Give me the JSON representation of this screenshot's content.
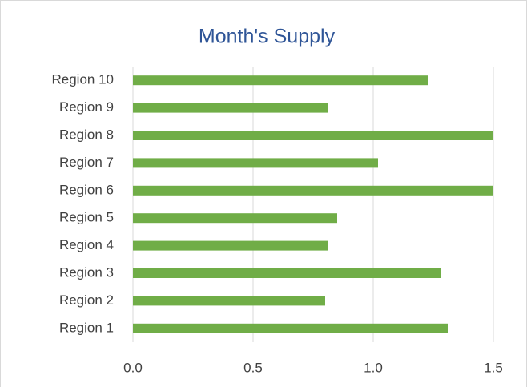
{
  "chart_data": {
    "type": "bar",
    "orientation": "horizontal",
    "title": "Month's Supply",
    "categories": [
      "Region 1",
      "Region 2",
      "Region 3",
      "Region 4",
      "Region 5",
      "Region 6",
      "Region 7",
      "Region 8",
      "Region 9",
      "Region 10"
    ],
    "values": [
      1.31,
      0.8,
      1.28,
      0.81,
      0.85,
      1.5,
      1.02,
      1.5,
      0.81,
      1.23
    ],
    "color": "#70ad47",
    "xlim": [
      0,
      1.5
    ],
    "xticks": [
      {
        "value": 0,
        "label": "0.0"
      },
      {
        "value": 0.5,
        "label": "0.5"
      },
      {
        "value": 1,
        "label": "1.0"
      },
      {
        "value": 1.5,
        "label": "1.5"
      }
    ],
    "grid": true
  }
}
